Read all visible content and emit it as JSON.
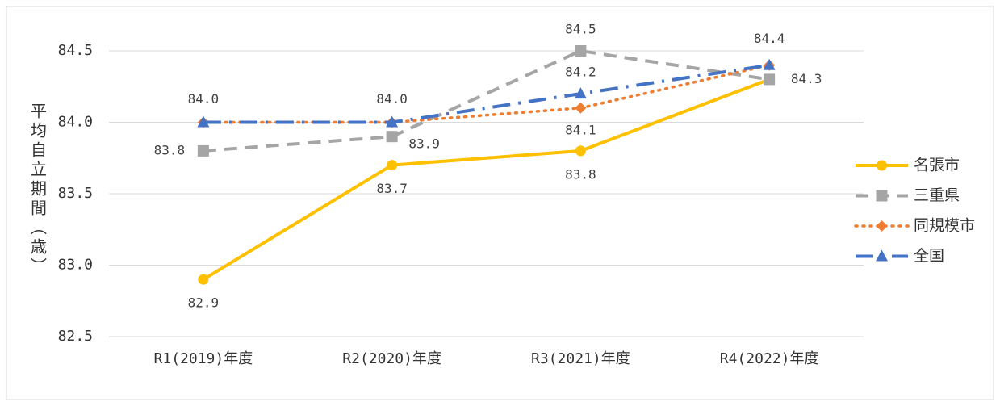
{
  "chart_data": {
    "type": "line",
    "y_label": "平均自立期間（歳）",
    "categories": [
      "R1(2019)年度",
      "R2(2020)年度",
      "R3(2021)年度",
      "R4(2022)年度"
    ],
    "series": [
      {
        "name": "名張市",
        "color": "#FFC000",
        "marker": "circle",
        "dash": "solid",
        "values": [
          82.9,
          83.7,
          83.8,
          84.3
        ],
        "value_labels": [
          "82.9",
          "83.7",
          "83.8",
          null
        ]
      },
      {
        "name": "三重県",
        "color": "#A5A5A5",
        "marker": "square",
        "dash": "dashed",
        "values": [
          83.8,
          83.9,
          84.5,
          84.3
        ],
        "value_labels": [
          "83.8",
          "83.9",
          "84.5",
          "84.3"
        ]
      },
      {
        "name": "同規模市",
        "color": "#ED7D31",
        "marker": "diamond",
        "dash": "dotted",
        "values": [
          84.0,
          84.0,
          84.1,
          84.4
        ],
        "value_labels": [
          null,
          null,
          "84.1",
          null
        ]
      },
      {
        "name": "全国",
        "color": "#4472C4",
        "marker": "triangle",
        "dash": "dashdot",
        "values": [
          84.0,
          84.0,
          84.2,
          84.4
        ],
        "value_labels": [
          "84.0",
          "84.0",
          "84.2",
          "84.4"
        ]
      }
    ],
    "ylim": [
      82.5,
      84.5
    ],
    "yticks": [
      82.5,
      {
        "value": 83.0,
        "label": "83.0"
      },
      83.5,
      {
        "value": 84.0,
        "label": "84.0"
      },
      84.5
    ],
    "grid": true,
    "legend": "right"
  }
}
